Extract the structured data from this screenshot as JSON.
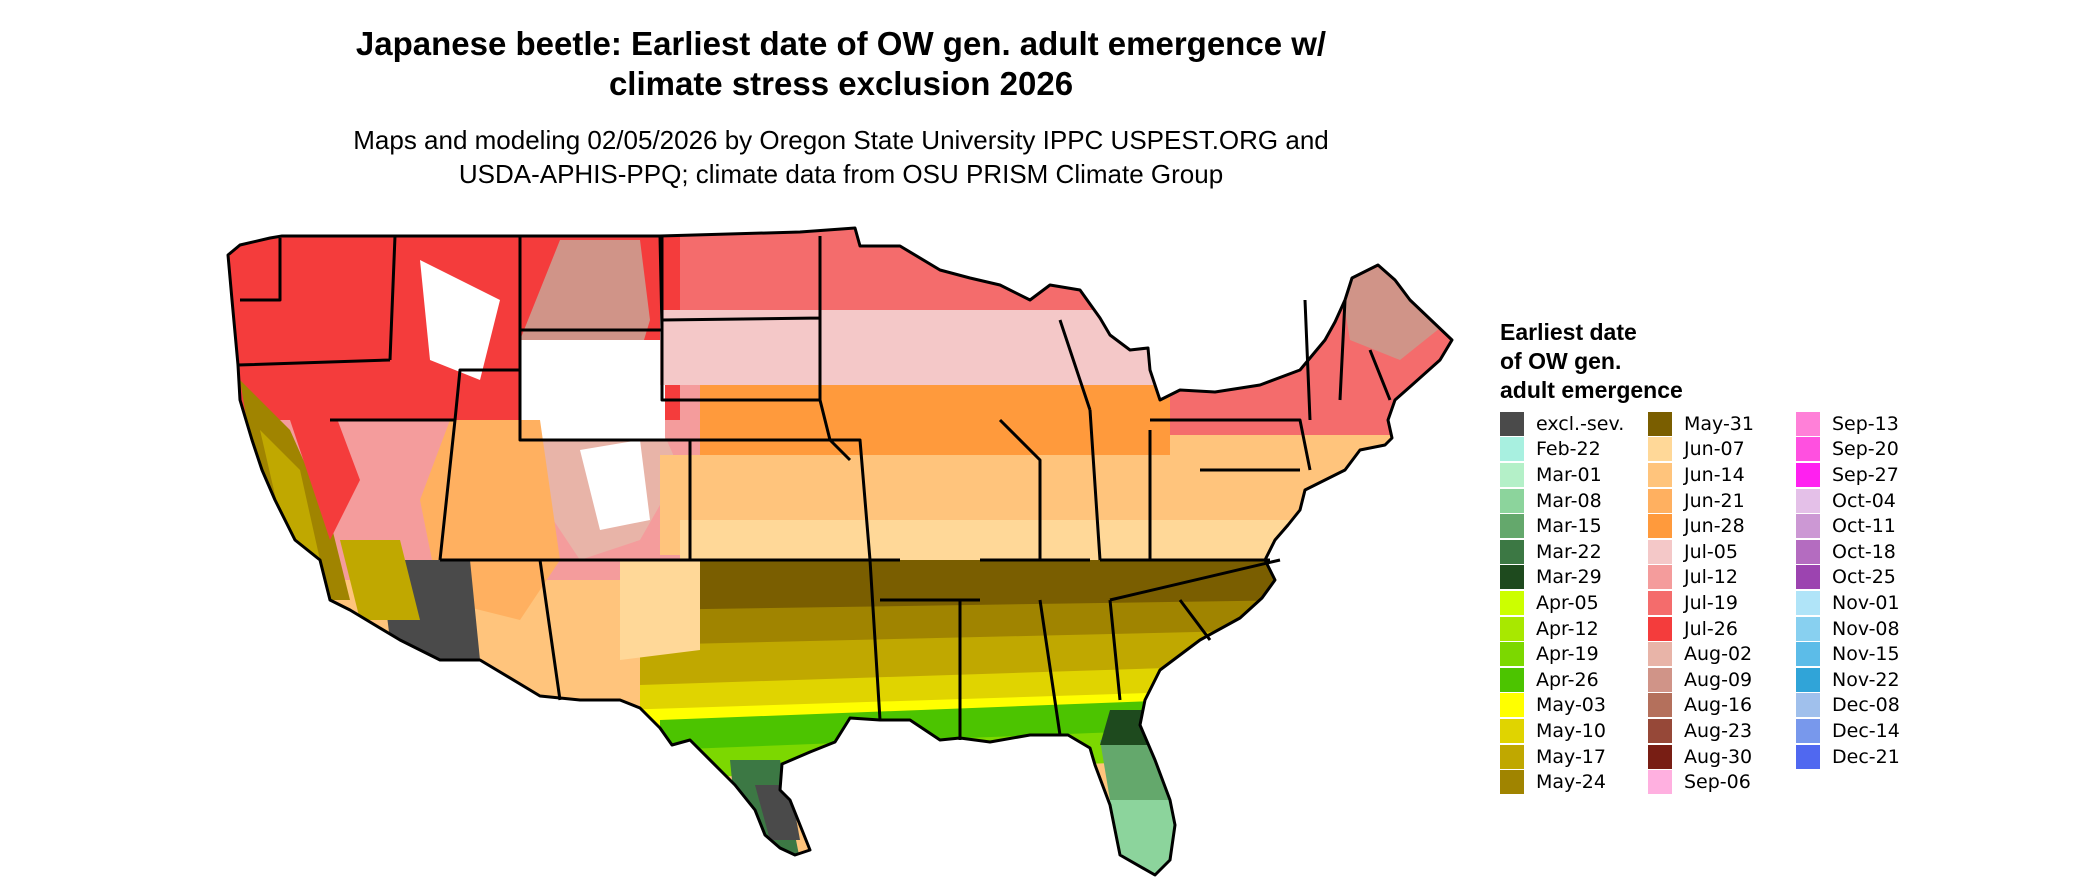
{
  "title_line1": "Japanese beetle: Earliest date of OW gen. adult emergence w/",
  "title_line2": "climate stress exclusion 2026",
  "subtitle_line1": "Maps and modeling 02/05/2026 by Oregon State University IPPC USPEST.ORG and",
  "subtitle_line2": "USDA-APHIS-PPQ; climate data from OSU PRISM Climate Group",
  "legend": {
    "title_line1": "Earliest date",
    "title_line2": "of OW gen.",
    "title_line3": "adult emergence",
    "items": [
      {
        "label": "excl.-sev.",
        "color": "#4a4a4a"
      },
      {
        "label": "Feb-22",
        "color": "#a8f0e0"
      },
      {
        "label": "Mar-01",
        "color": "#b4f0c8"
      },
      {
        "label": "Mar-08",
        "color": "#8cd49c"
      },
      {
        "label": "Mar-15",
        "color": "#64a86c"
      },
      {
        "label": "Mar-22",
        "color": "#3c7844"
      },
      {
        "label": "Mar-29",
        "color": "#1e4a1e"
      },
      {
        "label": "Apr-05",
        "color": "#ccff00"
      },
      {
        "label": "Apr-12",
        "color": "#a8e800"
      },
      {
        "label": "Apr-19",
        "color": "#7cd800"
      },
      {
        "label": "Apr-26",
        "color": "#4cc400"
      },
      {
        "label": "May-03",
        "color": "#ffff00"
      },
      {
        "label": "May-10",
        "color": "#e0d400"
      },
      {
        "label": "May-17",
        "color": "#c0a800"
      },
      {
        "label": "May-24",
        "color": "#a08400"
      },
      {
        "label": "May-31",
        "color": "#7a5e00"
      },
      {
        "label": "Jun-07",
        "color": "#ffd898"
      },
      {
        "label": "Jun-14",
        "color": "#ffc47c"
      },
      {
        "label": "Jun-21",
        "color": "#ffb060"
      },
      {
        "label": "Jun-28",
        "color": "#ff9a3c"
      },
      {
        "label": "Jul-05",
        "color": "#f4c8c8"
      },
      {
        "label": "Jul-12",
        "color": "#f49c9c"
      },
      {
        "label": "Jul-19",
        "color": "#f46c6c"
      },
      {
        "label": "Jul-26",
        "color": "#f43c3c"
      },
      {
        "label": "Aug-02",
        "color": "#e8b4a8"
      },
      {
        "label": "Aug-09",
        "color": "#d09488"
      },
      {
        "label": "Aug-16",
        "color": "#b4705c"
      },
      {
        "label": "Aug-23",
        "color": "#964838"
      },
      {
        "label": "Aug-30",
        "color": "#781e14"
      },
      {
        "label": "Sep-06",
        "color": "#ffb0e0"
      },
      {
        "label": "Sep-13",
        "color": "#ff80d8"
      },
      {
        "label": "Sep-20",
        "color": "#ff50e0"
      },
      {
        "label": "Sep-27",
        "color": "#ff20f0"
      },
      {
        "label": "Oct-04",
        "color": "#e4c0e8"
      },
      {
        "label": "Oct-11",
        "color": "#cc98d4"
      },
      {
        "label": "Oct-18",
        "color": "#b46cc0"
      },
      {
        "label": "Oct-25",
        "color": "#9c44b0"
      },
      {
        "label": "Nov-01",
        "color": "#b0e4f8"
      },
      {
        "label": "Nov-08",
        "color": "#88d0f0"
      },
      {
        "label": "Nov-15",
        "color": "#5cbce8"
      },
      {
        "label": "Nov-22",
        "color": "#30a4d8"
      },
      {
        "label": "Dec-08",
        "color": "#a0c0ec"
      },
      {
        "label": "Dec-14",
        "color": "#7898ec"
      },
      {
        "label": "Dec-21",
        "color": "#5068f0"
      }
    ]
  }
}
